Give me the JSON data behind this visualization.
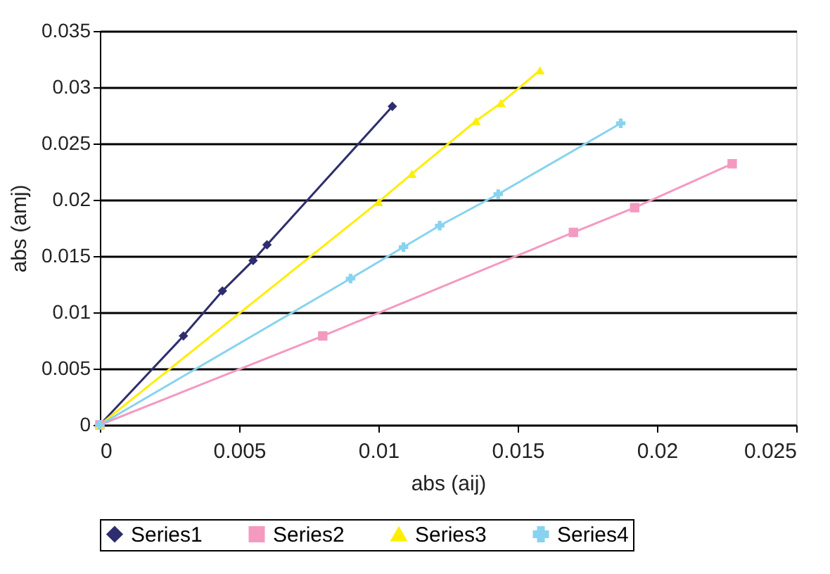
{
  "chart_data": {
    "type": "line",
    "xlabel": "abs (aij)",
    "ylabel": "abs (amj)",
    "xlim": [
      0,
      0.025
    ],
    "xticks": [
      0,
      0.005,
      0.01,
      0.015,
      0.02,
      0.025
    ],
    "ylim": [
      0,
      0.035
    ],
    "yticks": [
      0,
      0.005,
      0.01,
      0.015,
      0.02,
      0.025,
      0.03,
      0.035
    ],
    "grid": "y",
    "legend": "bottom",
    "series": [
      {
        "name": "Series1",
        "color": "#2e2e6e",
        "marker": "diamond",
        "x": [
          0,
          0.003,
          0.0044,
          0.0055,
          0.006,
          0.0105
        ],
        "values": [
          0,
          0.0079,
          0.0119,
          0.0146,
          0.016,
          0.0283
        ]
      },
      {
        "name": "Series2",
        "color": "#f49ac1",
        "marker": "square",
        "x": [
          0,
          0.008,
          0.017,
          0.0192,
          0.0227
        ],
        "values": [
          0,
          0.0079,
          0.0171,
          0.0193,
          0.0232
        ]
      },
      {
        "name": "Series3",
        "color": "#ffee00",
        "marker": "triangle",
        "x": [
          0,
          0.01,
          0.0112,
          0.0135,
          0.0144,
          0.0158
        ],
        "values": [
          0,
          0.0198,
          0.0223,
          0.027,
          0.0286,
          0.0315
        ]
      },
      {
        "name": "Series4",
        "color": "#87d3f0",
        "marker": "cross",
        "x": [
          0,
          0.009,
          0.0109,
          0.0122,
          0.0143,
          0.0187
        ],
        "values": [
          0,
          0.013,
          0.0158,
          0.0177,
          0.0205,
          0.0268
        ]
      }
    ]
  }
}
